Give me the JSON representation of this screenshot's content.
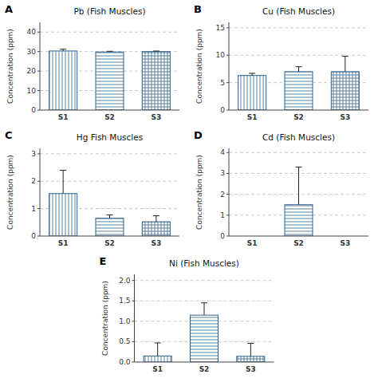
{
  "chart_data": [
    {
      "type": "bar",
      "title": "Pb (Fish Muscles)",
      "y_label": "Concentration (ppm)",
      "annotations": [
        "A"
      ],
      "categories": [
        "S1",
        "S2",
        "S3"
      ],
      "values": [
        30.3,
        29.8,
        30.0
      ],
      "errors": [
        0.9,
        0.35,
        0.28
      ],
      "ylim": [
        0,
        45
      ],
      "yticks": [
        0,
        10,
        20,
        30,
        40
      ],
      "grid": true
    },
    {
      "type": "bar",
      "title": "Cu (Fish Muscles)",
      "y_label": "Concentration (ppm)",
      "annotations": [
        "B"
      ],
      "categories": [
        "S1",
        "S2",
        "S3"
      ],
      "values": [
        6.3,
        7.0,
        7.0
      ],
      "errors": [
        0.4,
        0.9,
        2.8
      ],
      "ylim": [
        0,
        16
      ],
      "yticks": [
        0,
        5,
        10,
        15
      ],
      "grid": true
    },
    {
      "type": "bar",
      "title": "Hg Fish Muscles",
      "y_label": "Concentration (ppm)",
      "annotations": [
        "C"
      ],
      "categories": [
        "S1",
        "S2",
        "S3"
      ],
      "values": [
        1.55,
        0.65,
        0.52
      ],
      "errors": [
        0.85,
        0.12,
        0.22
      ],
      "ylim": [
        0,
        3.2
      ],
      "yticks": [
        0,
        1,
        2,
        3
      ],
      "grid": true
    },
    {
      "type": "bar",
      "title": "Cd (Fish Muscles)",
      "y_label": "Concentration (ppm)",
      "annotations": [
        "D"
      ],
      "categories": [
        "S1",
        "S2",
        "S3"
      ],
      "values": [
        0.0,
        1.5,
        0.0
      ],
      "errors": [
        0.0,
        1.8,
        0.0
      ],
      "ylim": [
        0,
        4.2
      ],
      "yticks": [
        0,
        1,
        2,
        3,
        4
      ],
      "grid": true
    },
    {
      "type": "bar",
      "title": "Ni (Fish Muscles)",
      "y_label": "Concentration (ppm)",
      "annotations": [
        "E"
      ],
      "categories": [
        "S1",
        "S2",
        "S3"
      ],
      "values": [
        0.15,
        1.15,
        0.14
      ],
      "errors": [
        0.32,
        0.3,
        0.32
      ],
      "ylim": [
        0,
        2.15
      ],
      "yticks": [
        {
          "value": 0.0,
          "label": "0.0"
        },
        0.5,
        {
          "value": 1.0,
          "label": "1.0"
        },
        1.5,
        {
          "value": 2.0,
          "label": "2.0"
        }
      ],
      "grid": true
    }
  ]
}
